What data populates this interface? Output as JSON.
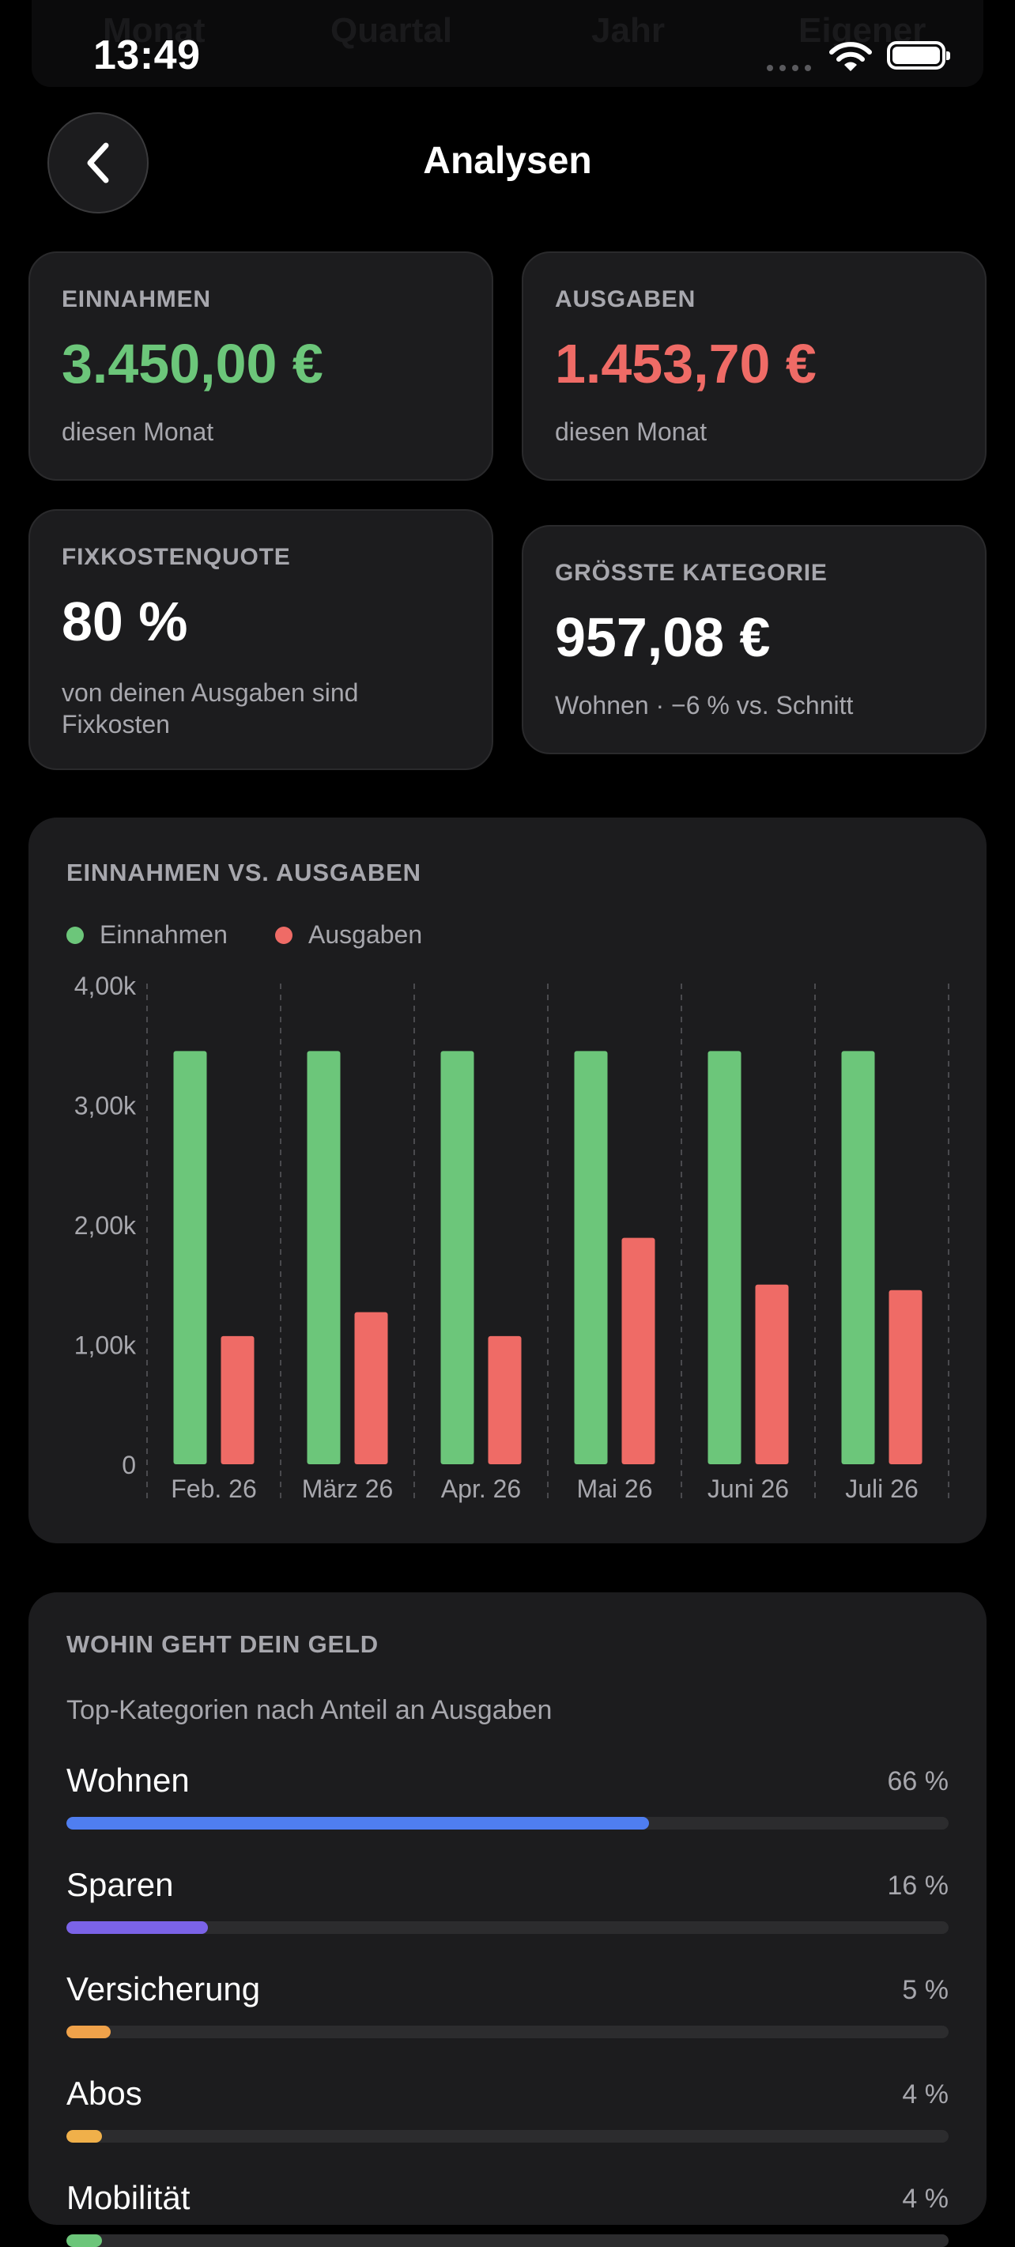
{
  "background_tabs": [
    "Monat",
    "Quartal",
    "Jahr",
    "Eigener"
  ],
  "status_bar": {
    "time": "13:49"
  },
  "nav": {
    "title": "Analysen"
  },
  "cards": {
    "income": {
      "label": "EINNAHMEN",
      "value": "3.450,00 €",
      "sub": "diesen Monat",
      "color": "#6cc67a"
    },
    "expenses": {
      "label": "AUSGABEN",
      "value": "1.453,70 €",
      "sub": "diesen Monat",
      "color": "#ef6b66"
    },
    "fixed_ratio": {
      "label": "FIXKOSTENQUOTE",
      "value": "80 %",
      "sub": "von deinen Ausgaben sind Fixkosten"
    },
    "largest_category": {
      "label": "GRÖSSTE KATEGORIE",
      "value": "957,08 €",
      "sub": "Wohnen · −6 % vs. Schnitt"
    }
  },
  "chart_section": {
    "title": "EINNAHMEN VS. AUSGABEN"
  },
  "chart_data": {
    "type": "bar",
    "categories": [
      "Feb. 26",
      "März 26",
      "Apr. 26",
      "Mai 26",
      "Juni 26",
      "Juli 26"
    ],
    "series": [
      {
        "name": "Einnahmen",
        "color": "#6cc67a",
        "values": [
          3450,
          3450,
          3450,
          3450,
          3450,
          3450
        ]
      },
      {
        "name": "Ausgaben",
        "color": "#ef6b66",
        "values": [
          1070,
          1270,
          1070,
          1890,
          1500,
          1454
        ]
      }
    ],
    "ylim": [
      0,
      4000
    ],
    "y_ticks": [
      0,
      1000,
      2000,
      3000,
      4000
    ],
    "y_tick_labels": [
      "0",
      "1,00k",
      "2,00k",
      "3,00k",
      "4,00k"
    ],
    "grid": "vertical dashed",
    "legend": "top-left"
  },
  "categories_section": {
    "title": "WOHIN GEHT DEIN GELD",
    "subtitle": "Top-Kategorien nach Anteil an Ausgaben",
    "items": [
      {
        "name": "Wohnen",
        "pct_label": "66 %",
        "share": 0.66,
        "color": "#4f7ef0"
      },
      {
        "name": "Sparen",
        "pct_label": "16 %",
        "share": 0.16,
        "color": "#7b63e8"
      },
      {
        "name": "Versicherung",
        "pct_label": "5 %",
        "share": 0.05,
        "color": "#f0a24a"
      },
      {
        "name": "Abos",
        "pct_label": "4 %",
        "share": 0.04,
        "color": "#f0b04a"
      },
      {
        "name": "Mobilität",
        "pct_label": "4 %",
        "share": 0.04,
        "color": "#6cc67a"
      }
    ]
  }
}
